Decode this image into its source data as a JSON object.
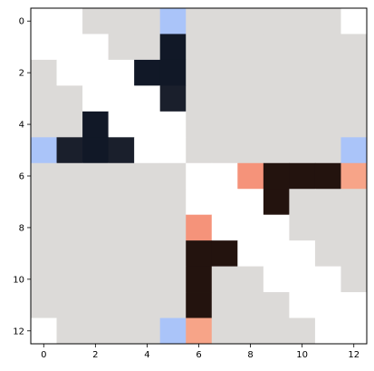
{
  "chart_data": {
    "type": "heatmap",
    "x_ticks": [
      0,
      2,
      4,
      6,
      8,
      10,
      12
    ],
    "y_ticks": [
      0,
      2,
      4,
      6,
      8,
      10,
      12
    ],
    "x_tick_labels": [
      "0",
      "2",
      "4",
      "6",
      "8",
      "10",
      "12"
    ],
    "y_tick_labels": [
      "0",
      "2",
      "4",
      "6",
      "8",
      "10",
      "12"
    ],
    "xlim": [
      -0.5,
      12.5
    ],
    "ylim": [
      12.5,
      -0.5
    ],
    "grid": false,
    "palette": {
      "W": "#ffffff",
      "G": "#dcdad8",
      "B": "#aac4f9",
      "N": "#111827",
      "D": "#1a1f2c",
      "K": "#23130e",
      "O": "#f5937a",
      "R": "#f7a488"
    },
    "matrix": [
      [
        "W",
        "W",
        "G",
        "G",
        "G",
        "B",
        "G",
        "G",
        "G",
        "G",
        "G",
        "G",
        "W"
      ],
      [
        "W",
        "W",
        "W",
        "G",
        "G",
        "N",
        "G",
        "G",
        "G",
        "G",
        "G",
        "G",
        "G"
      ],
      [
        "G",
        "W",
        "W",
        "W",
        "N",
        "N",
        "G",
        "G",
        "G",
        "G",
        "G",
        "G",
        "G"
      ],
      [
        "G",
        "G",
        "W",
        "W",
        "W",
        "D",
        "G",
        "G",
        "G",
        "G",
        "G",
        "G",
        "G"
      ],
      [
        "G",
        "G",
        "N",
        "W",
        "W",
        "W",
        "G",
        "G",
        "G",
        "G",
        "G",
        "G",
        "G"
      ],
      [
        "B",
        "D",
        "N",
        "D",
        "W",
        "W",
        "G",
        "G",
        "G",
        "G",
        "G",
        "G",
        "B"
      ],
      [
        "G",
        "G",
        "G",
        "G",
        "G",
        "G",
        "W",
        "W",
        "O",
        "K",
        "K",
        "K",
        "R"
      ],
      [
        "G",
        "G",
        "G",
        "G",
        "G",
        "G",
        "W",
        "W",
        "W",
        "K",
        "G",
        "G",
        "G"
      ],
      [
        "G",
        "G",
        "G",
        "G",
        "G",
        "G",
        "O",
        "W",
        "W",
        "W",
        "G",
        "G",
        "G"
      ],
      [
        "G",
        "G",
        "G",
        "G",
        "G",
        "G",
        "K",
        "K",
        "W",
        "W",
        "W",
        "G",
        "G"
      ],
      [
        "G",
        "G",
        "G",
        "G",
        "G",
        "G",
        "K",
        "G",
        "G",
        "W",
        "W",
        "W",
        "G"
      ],
      [
        "G",
        "G",
        "G",
        "G",
        "G",
        "G",
        "K",
        "G",
        "G",
        "G",
        "W",
        "W",
        "W"
      ],
      [
        "W",
        "G",
        "G",
        "G",
        "G",
        "B",
        "R",
        "G",
        "G",
        "G",
        "G",
        "W",
        "W"
      ]
    ]
  }
}
